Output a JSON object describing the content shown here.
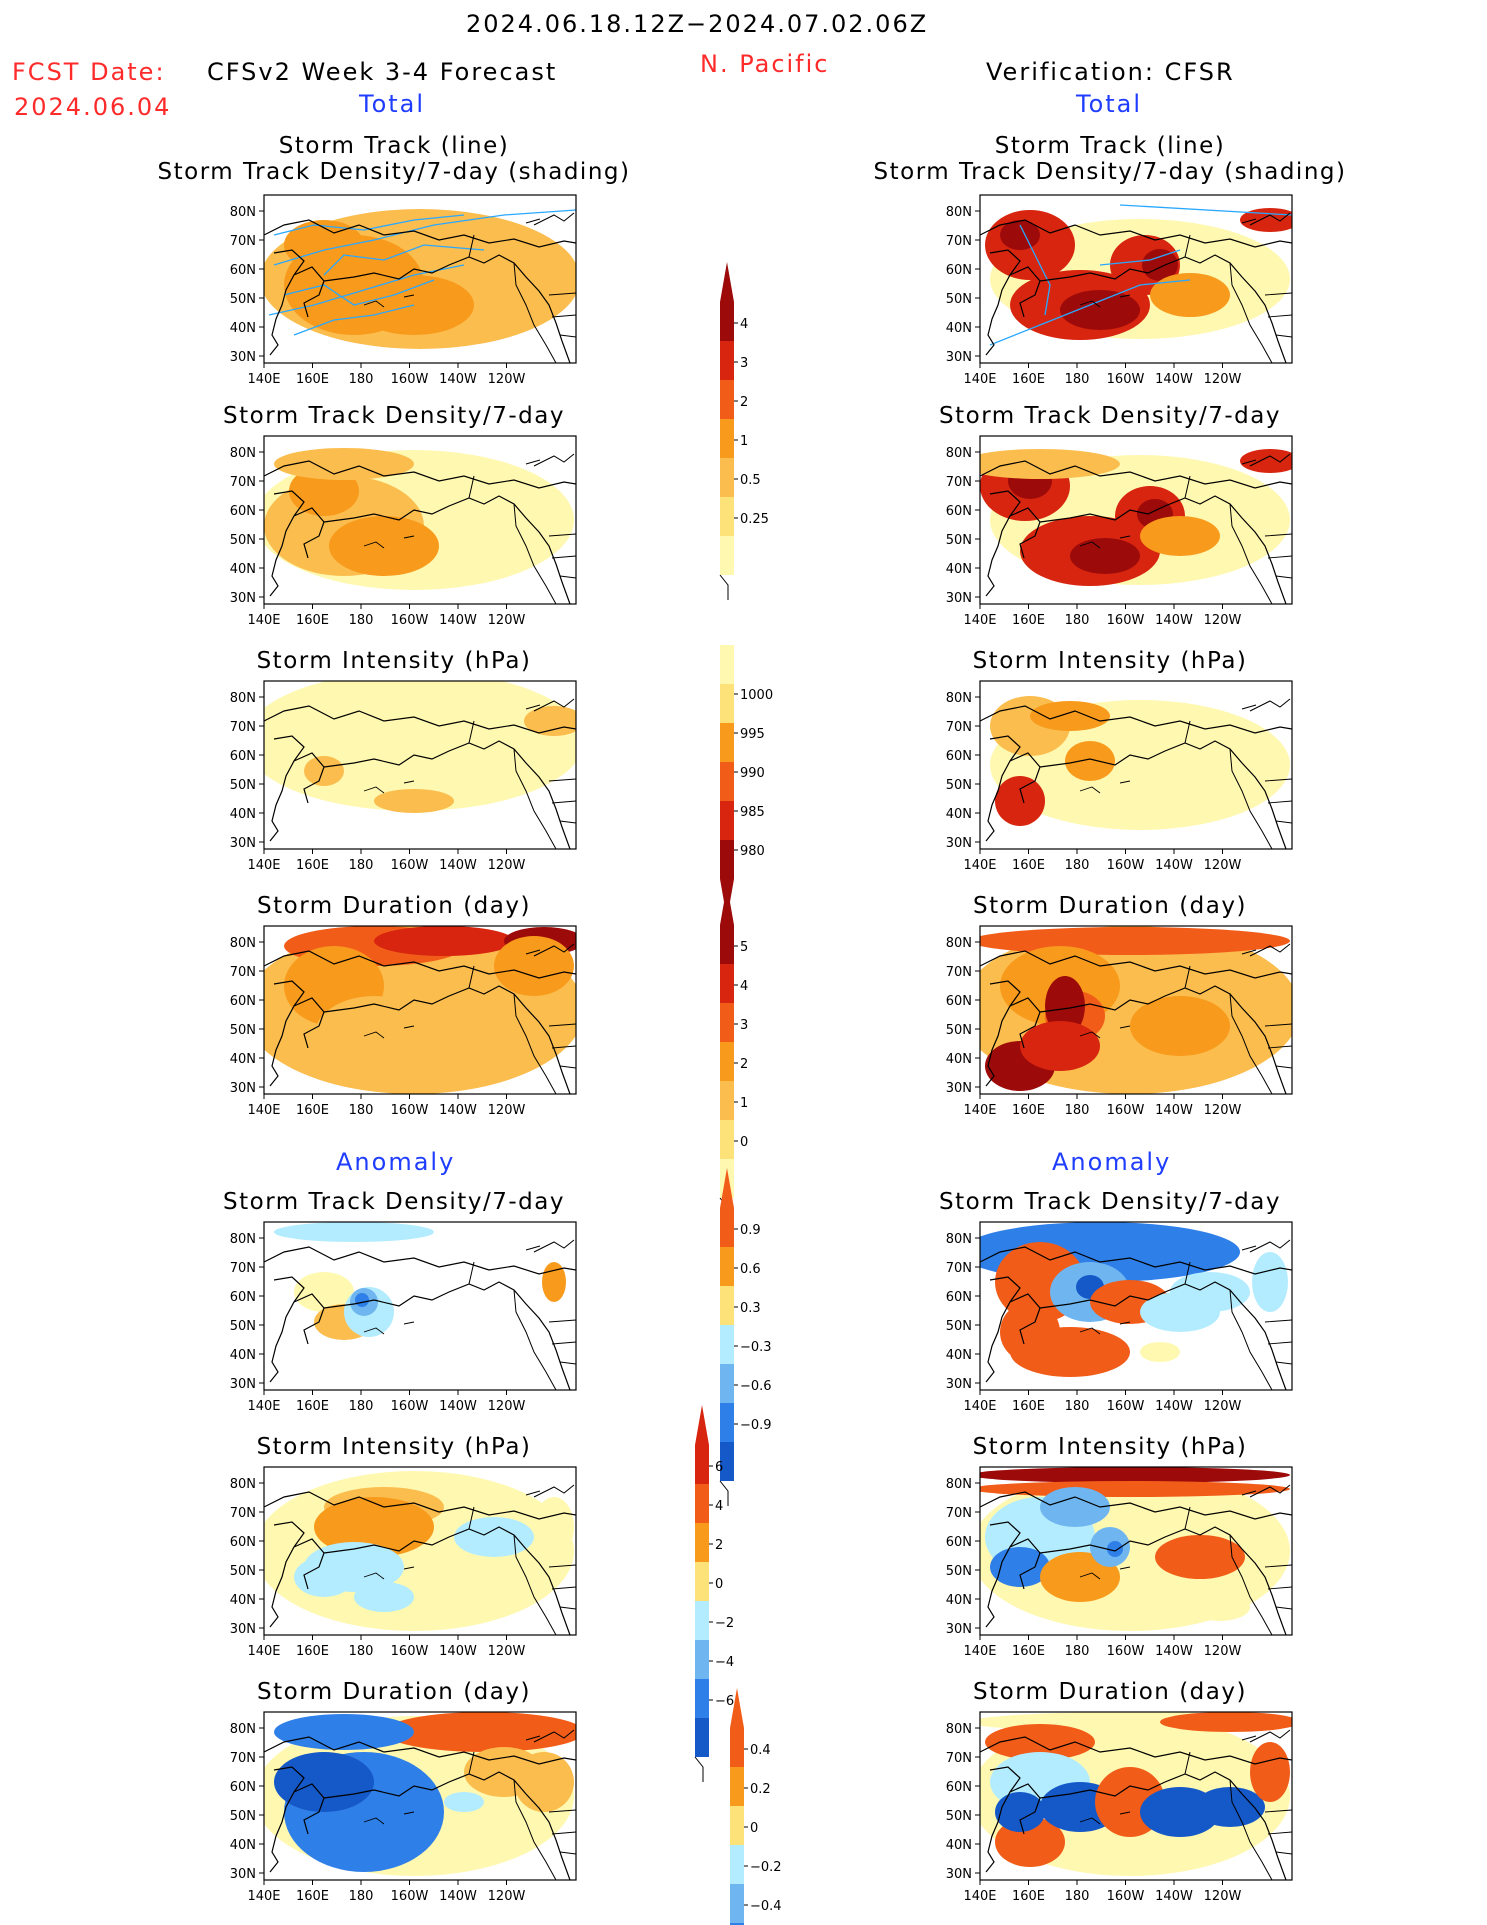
{
  "header": {
    "period": "2024.06.18.12Z−2024.07.02.06Z",
    "fcst_label": "FCST Date:",
    "fcst_date": "2024.06.04",
    "forecast_title": "CFSv2 Week 3-4 Forecast",
    "region": "N. Pacific",
    "verification_title": "Verification: CFSR"
  },
  "sections": {
    "total_left": "Total",
    "total_right": "Total",
    "anomaly_left": "Anomaly",
    "anomaly_right": "Anomaly"
  },
  "panel_titles": {
    "track_line": "Storm Track (line)",
    "track_shading": "Storm Track Density/7-day (shading)",
    "density": "Storm Track Density/7-day",
    "intensity": "Storm Intensity (hPa)",
    "duration": "Storm Duration (day)"
  },
  "axes": {
    "lat_ticks": [
      "80N",
      "70N",
      "60N",
      "50N",
      "40N",
      "30N"
    ],
    "lon_ticks": [
      "140E",
      "160E",
      "180",
      "160W",
      "140W",
      "120W"
    ]
  },
  "colorbars": {
    "density_total": [
      "4",
      "3",
      "2",
      "1",
      "0.5",
      "0.25"
    ],
    "intensity_total": [
      "1000",
      "995",
      "990",
      "985",
      "980"
    ],
    "duration_total": [
      "5",
      "4",
      "3",
      "2",
      "1",
      "0"
    ],
    "density_anom": [
      "0.9",
      "0.6",
      "0.3",
      "−0.3",
      "−0.6",
      "−0.9"
    ],
    "intensity_anom": [
      "6",
      "4",
      "2",
      "0",
      "−2",
      "−4",
      "−6"
    ],
    "duration_anom": [
      "0.4",
      "0.2",
      "0",
      "−0.2",
      "−0.4"
    ]
  },
  "colors": {
    "light_yellow": "#fff8b0",
    "yellow": "#fde27a",
    "light_orange": "#fbbd4d",
    "orange": "#f89a1c",
    "red_orange": "#f25c19",
    "red": "#d7250f",
    "dark_red": "#9d0a0a",
    "light_blue": "#b3ecff",
    "mid_blue": "#6fb6f0",
    "blue": "#2f7fe8",
    "dark_blue": "#1558c8",
    "track_line": "#2aa8ff",
    "header_red": "#ff2a2a",
    "header_blue": "#1f3dff"
  }
}
